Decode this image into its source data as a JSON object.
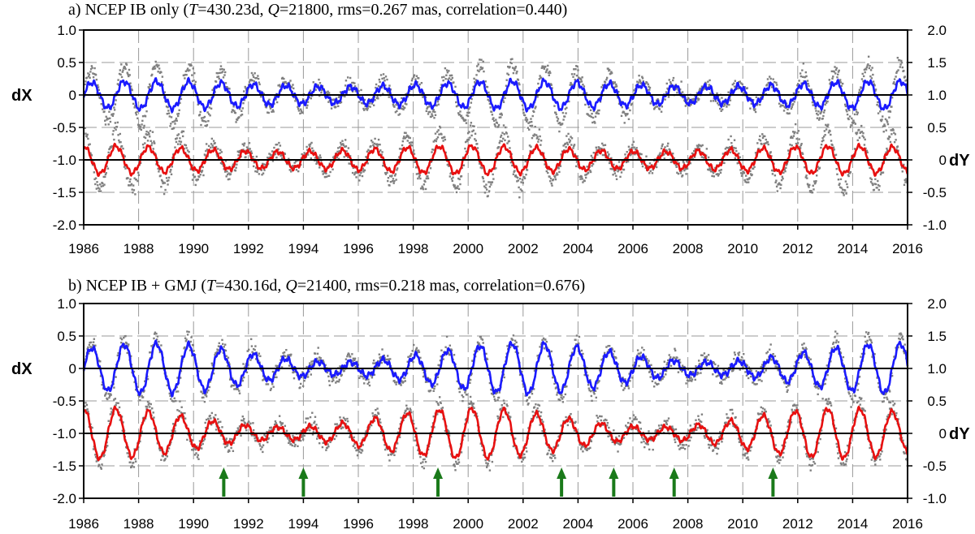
{
  "colors": {
    "dx_model": "#1a1aff",
    "dy_model": "#e81010",
    "observations": "#808080",
    "zero_line": "#000000",
    "arrow": "#1a7a1a",
    "grid": "#999999"
  },
  "chart_data": [
    {
      "type": "line",
      "panel": "a",
      "title": {
        "prefix": "a) NCEP IB only (",
        "T_symbol": "T",
        "T_value": "=430.23d, ",
        "Q_symbol": "Q",
        "Q_value": "=21800, rms=0.267 mas, correlation=0.440)"
      },
      "ylabel_left": "dX",
      "ylabel_right": "dY",
      "xlim": [
        1986,
        2016
      ],
      "ylim_left": [
        -2.0,
        1.0
      ],
      "ylim_right": [
        -1.0,
        2.0
      ],
      "xticks": [
        "1986",
        "1988",
        "1990",
        "1992",
        "1994",
        "1996",
        "1998",
        "2000",
        "2002",
        "2004",
        "2006",
        "2008",
        "2010",
        "2012",
        "2014",
        "2016"
      ],
      "yticks_left": [
        "1.0",
        "0.5",
        "0",
        "-0.5",
        "-1.0",
        "-1.5",
        "-2.0"
      ],
      "yticks_right": [
        "2.0",
        "1.5",
        "1.0",
        "0.5",
        "0",
        "-0.5",
        "-1.0"
      ],
      "series": [
        {
          "name": "dX model",
          "axis": "left",
          "offset": 0,
          "amplitude": 0.17
        },
        {
          "name": "dY model",
          "axis": "right",
          "offset": 0,
          "amplitude": 0.17
        },
        {
          "name": "observations",
          "axis": "both",
          "style": "scatter"
        }
      ],
      "arrows": []
    },
    {
      "type": "line",
      "panel": "b",
      "title": {
        "prefix": "b) NCEP IB + GMJ (",
        "T_symbol": "T",
        "T_value": "=430.16d, ",
        "Q_symbol": "Q",
        "Q_value": "=21400, rms=0.218 mas, correlation=0.676)"
      },
      "ylabel_left": "dX",
      "ylabel_right": "dY",
      "xlim": [
        1986,
        2016
      ],
      "ylim_left": [
        -2.0,
        1.0
      ],
      "ylim_right": [
        -1.0,
        2.0
      ],
      "xticks": [
        "1986",
        "1988",
        "1990",
        "1992",
        "1994",
        "1996",
        "1998",
        "2000",
        "2002",
        "2004",
        "2006",
        "2008",
        "2010",
        "2012",
        "2014",
        "2016"
      ],
      "yticks_left": [
        "1.0",
        "0.5",
        "0",
        "-0.5",
        "-1.0",
        "-1.5",
        "-2.0"
      ],
      "yticks_right": [
        "2.0",
        "1.5",
        "1.0",
        "0.5",
        "0",
        "-0.5",
        "-1.0"
      ],
      "series": [
        {
          "name": "dX model",
          "axis": "left",
          "offset": 0,
          "amplitude": 0.24
        },
        {
          "name": "dY model",
          "axis": "right",
          "offset": 0,
          "amplitude": 0.24
        },
        {
          "name": "observations",
          "axis": "both",
          "style": "scatter"
        }
      ],
      "arrows": [
        1991.1,
        1994.0,
        1998.9,
        2003.4,
        2005.3,
        2007.5,
        2011.1
      ]
    }
  ]
}
